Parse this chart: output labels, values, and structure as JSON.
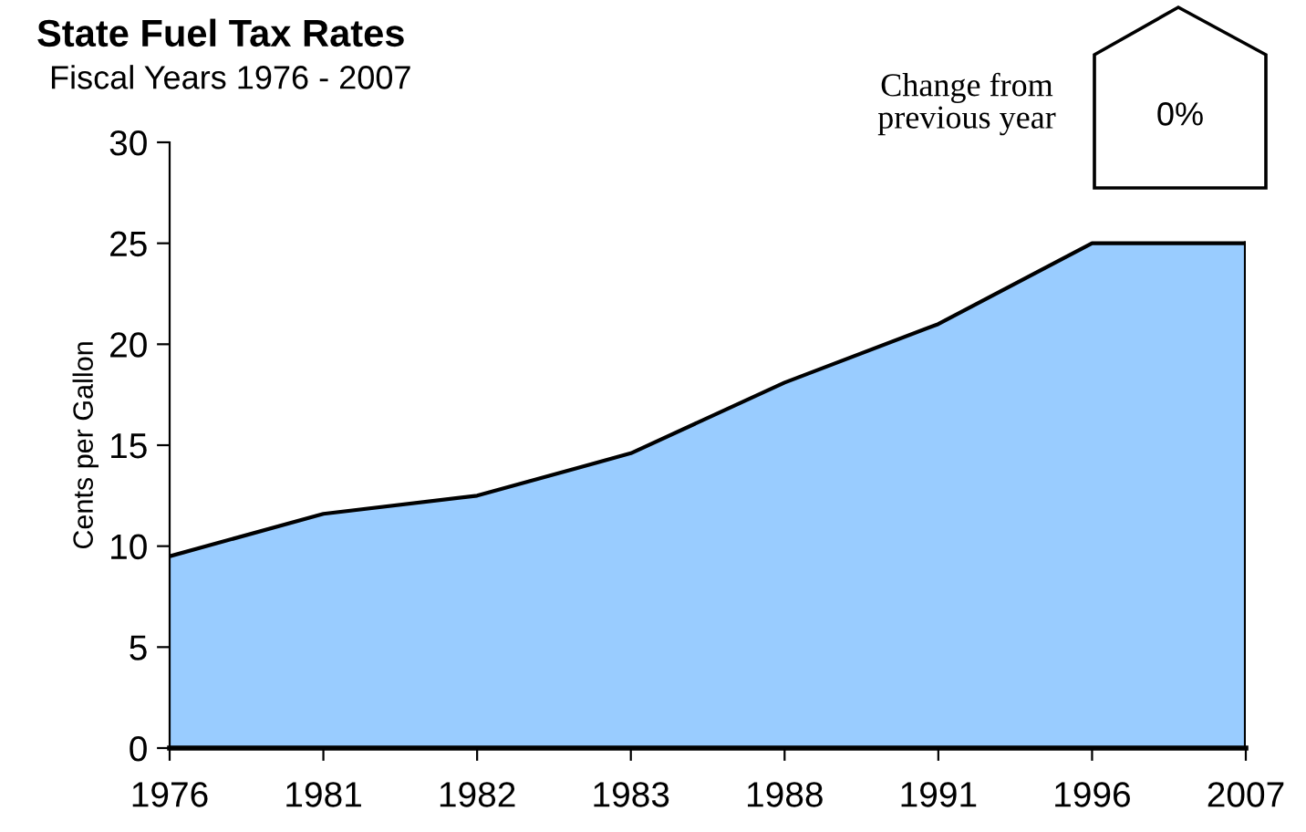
{
  "chart_data": {
    "type": "area",
    "title": "State Fuel Tax Rates",
    "subtitle": "Fiscal Years 1976 - 2007",
    "ylabel": "Cents per Gallon",
    "categories": [
      "1976",
      "1981",
      "1982",
      "1983",
      "1988",
      "1991",
      "1996",
      "2007"
    ],
    "series": [
      {
        "color": "#99ccff",
        "values": [
          9.5,
          11.6,
          12.5,
          14.6,
          18.1,
          21.0,
          25.0,
          25.0
        ]
      }
    ],
    "ylim": [
      0,
      30
    ],
    "yticks": [
      0,
      5,
      10,
      15,
      20,
      25,
      30
    ],
    "grid": false,
    "legend": false,
    "annotations": [
      "Change from\nprevious year",
      "0%"
    ]
  }
}
